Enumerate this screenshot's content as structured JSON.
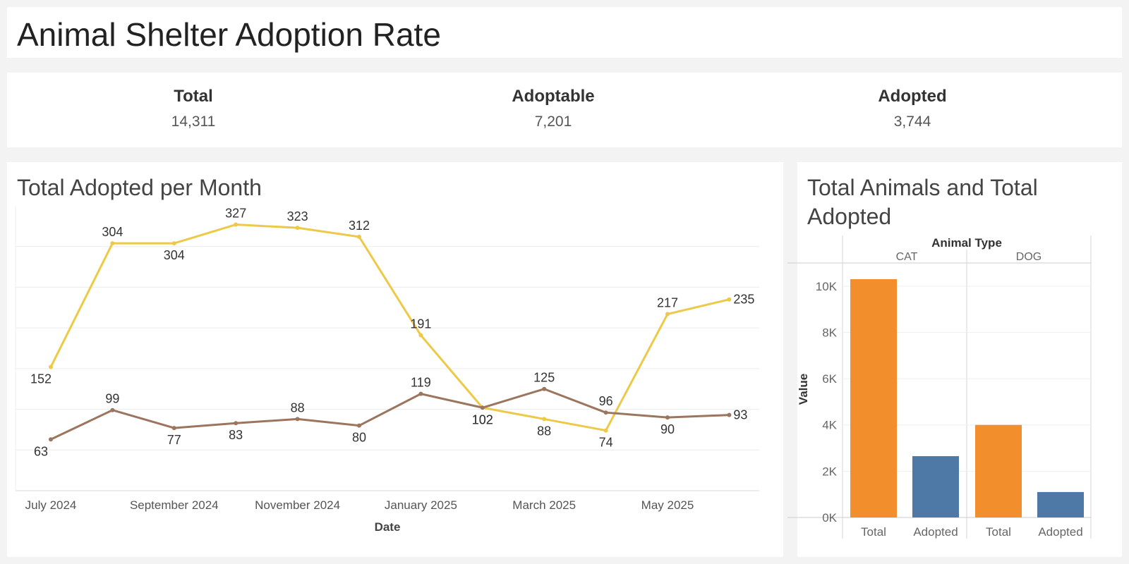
{
  "page": {
    "title": "Animal Shelter Adoption Rate"
  },
  "kpis": [
    {
      "label": "Total",
      "value": "14,311"
    },
    {
      "label": "Adoptable",
      "value": "7,201"
    },
    {
      "label": "Adopted",
      "value": "3,744"
    }
  ],
  "colors": {
    "background": "#f3f3f3",
    "panel": "#ffffff",
    "gridline": "#ececec",
    "line_series_1": "#edc948",
    "line_series_2": "#9c755f",
    "bar_total": "#f28e2b",
    "bar_adopted": "#4e79a7"
  },
  "chart_data": [
    {
      "type": "line",
      "title": "Total Adopted per Month",
      "xlabel": "Date",
      "ylabel": "",
      "x": [
        "2024-07",
        "2024-08",
        "2024-09",
        "2024-10",
        "2024-11",
        "2024-12",
        "2025-01",
        "2025-02",
        "2025-03",
        "2025-04",
        "2025-05",
        "2025-06"
      ],
      "x_tick_labels": [
        "July 2024",
        "September 2024",
        "November 2024",
        "January 2025",
        "March 2025",
        "May 2025"
      ],
      "x_tick_positions": [
        "2024-07",
        "2024-09",
        "2024-11",
        "2025-01",
        "2025-03",
        "2025-05"
      ],
      "ylim": [
        0,
        350
      ],
      "grid": true,
      "series": [
        {
          "values": [
            152,
            304,
            304,
            327,
            323,
            312,
            191,
            102,
            88,
            74,
            217,
            235
          ]
        },
        {
          "values": [
            63,
            99,
            77,
            83,
            88,
            80,
            119,
            102,
            125,
            96,
            90,
            93
          ]
        }
      ]
    },
    {
      "type": "bar",
      "title": "Total Animals and Total Adopted",
      "xlabel": "Animal Type",
      "ylabel": "Value",
      "groups": [
        "CAT",
        "DOG"
      ],
      "categories": [
        "Total",
        "Adopted"
      ],
      "values": [
        [
          10300,
          2650
        ],
        [
          4000,
          1100
        ]
      ],
      "yticks": [
        "0K",
        "2K",
        "4K",
        "6K",
        "8K",
        "10K"
      ],
      "ylim": [
        0,
        11000
      ],
      "grid": true
    }
  ]
}
